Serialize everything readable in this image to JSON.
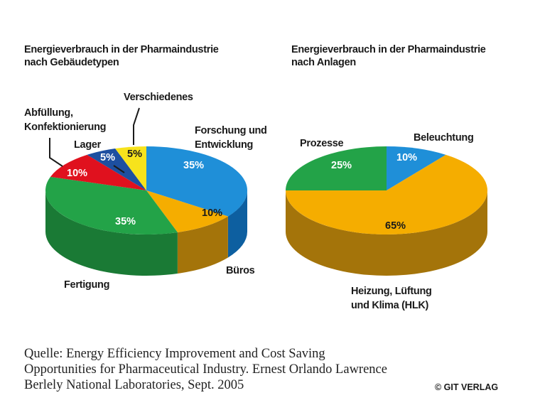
{
  "chart_data": [
    {
      "type": "pie",
      "title_lines": [
        "Energieverbrauch in der Pharmaindustrie",
        "nach Gebäudetypen"
      ],
      "slices": [
        {
          "label_lines": [
            "Forschung und",
            "Entwicklung"
          ],
          "value": 35,
          "value_label": "35%",
          "color": "#1f8fd8",
          "side": "#0d5fa0"
        },
        {
          "label_lines": [
            "Büros"
          ],
          "value": 10,
          "value_label": "10%",
          "color": "#f5ad00",
          "side": "#a4740a"
        },
        {
          "label_lines": [
            "Fertigung"
          ],
          "value": 35,
          "value_label": "35%",
          "color": "#23a348",
          "side": "#1a7a35"
        },
        {
          "label_lines": [
            "Abfüllung,",
            "Konfektionierung"
          ],
          "value": 10,
          "value_label": "10%",
          "color": "#e0111e",
          "side": "#a00d15"
        },
        {
          "label_lines": [
            "Lager"
          ],
          "value": 5,
          "value_label": "5%",
          "color": "#1d4fa0",
          "side": "#123570"
        },
        {
          "label_lines": [
            "Verschiedenes"
          ],
          "value": 5,
          "value_label": "5%",
          "color": "#f7e31c",
          "side": "#c2b010"
        }
      ]
    },
    {
      "type": "pie",
      "title_lines": [
        "Energieverbrauch in der Pharmaindustrie",
        "nach Anlagen"
      ],
      "slices": [
        {
          "label_lines": [
            "Beleuchtung"
          ],
          "value": 10,
          "value_label": "10%",
          "color": "#1f8fd8",
          "side": "#0d5fa0"
        },
        {
          "label_lines": [
            "Heizung, Lüftung",
            "und Klima (HLK)"
          ],
          "value": 65,
          "value_label": "65%",
          "color": "#f5ad00",
          "side": "#a4740a"
        },
        {
          "label_lines": [
            "Prozesse"
          ],
          "value": 25,
          "value_label": "25%",
          "color": "#23a348",
          "side": "#1a7a35"
        }
      ]
    }
  ],
  "source": {
    "lines": [
      "Quelle: Energy Efficiency Improvement and Cost Saving",
      "Opportunities for Pharmaceutical Industry. Ernest Orlando Lawrence",
      "Berlely National Laboratories, Sept. 2005"
    ]
  },
  "copyright": "© GIT VERLAG"
}
